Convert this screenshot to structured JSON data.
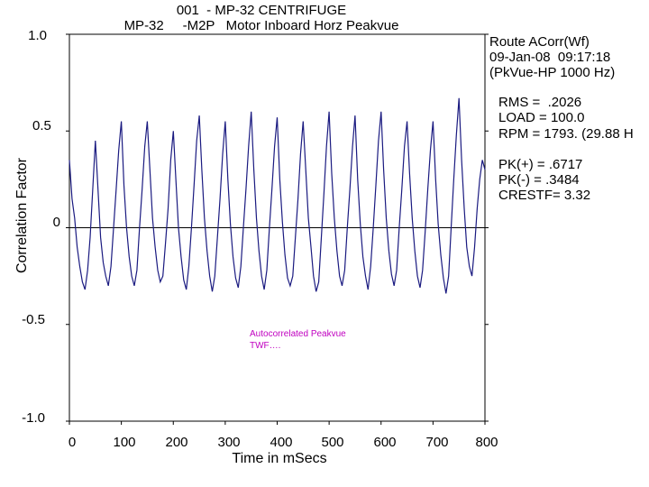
{
  "chart_data": {
    "type": "line",
    "title": "001  - MP-32 CENTRIFUGE",
    "subtitle": "MP-32     -M2P   Motor Inboard Horz Peakvue",
    "xlabel": "Time in mSecs",
    "ylabel": "Correlation Factor",
    "xlim": [
      0,
      800
    ],
    "ylim": [
      -1.0,
      1.0
    ],
    "x_ticks": [
      "0",
      "100",
      "200",
      "300",
      "400",
      "500",
      "600",
      "700",
      "800"
    ],
    "y_ticks": [
      "1.0",
      "0.5",
      "0",
      "-0.5",
      "-1.0"
    ],
    "grid": false,
    "zero_line": true,
    "series_color": "#1a1a80",
    "period_ms": 66.9,
    "series": [
      {
        "x": [
          0,
          5,
          10,
          15,
          20,
          25,
          30,
          35,
          40,
          45,
          50,
          55,
          60,
          65,
          70,
          75,
          80,
          85,
          90,
          95,
          100,
          105,
          110,
          115,
          120,
          125,
          130,
          135,
          140,
          145,
          150,
          155,
          160,
          165,
          170,
          175,
          180,
          185,
          190,
          195,
          200,
          205,
          210,
          215,
          220,
          225,
          230,
          235,
          240,
          245,
          250,
          255,
          260,
          265,
          270,
          275,
          280,
          285,
          290,
          295,
          300,
          305,
          310,
          315,
          320,
          325,
          330,
          335,
          340,
          345,
          350,
          355,
          360,
          365,
          370,
          375,
          380,
          385,
          390,
          395,
          400,
          405,
          410,
          415,
          420,
          425,
          430,
          435,
          440,
          445,
          450,
          455,
          460,
          465,
          470,
          475,
          480,
          485,
          490,
          495,
          500,
          505,
          510,
          515,
          520,
          525,
          530,
          535,
          540,
          545,
          550,
          555,
          560,
          565,
          570,
          575,
          580,
          585,
          590,
          595,
          600,
          605,
          610,
          615,
          620,
          625,
          630,
          635,
          640,
          645,
          650,
          655,
          660,
          665,
          670,
          675,
          680,
          685,
          690,
          695,
          700,
          705,
          710,
          715,
          720,
          725,
          730,
          735,
          740,
          745,
          750,
          755,
          760,
          765,
          770,
          775,
          780,
          785,
          790,
          795,
          800
        ],
        "y": [
          0.35,
          0.15,
          0.05,
          -0.1,
          -0.2,
          -0.28,
          -0.32,
          -0.22,
          -0.05,
          0.2,
          0.45,
          0.2,
          -0.05,
          -0.18,
          -0.25,
          -0.3,
          -0.2,
          0.0,
          0.2,
          0.4,
          0.55,
          0.22,
          0.0,
          -0.15,
          -0.25,
          -0.3,
          -0.22,
          0.0,
          0.2,
          0.42,
          0.55,
          0.3,
          0.05,
          -0.1,
          -0.22,
          -0.28,
          -0.25,
          -0.08,
          0.1,
          0.35,
          0.5,
          0.25,
          0.0,
          -0.15,
          -0.27,
          -0.32,
          -0.2,
          0.0,
          0.22,
          0.45,
          0.58,
          0.3,
          0.05,
          -0.12,
          -0.25,
          -0.33,
          -0.25,
          -0.05,
          0.15,
          0.38,
          0.55,
          0.25,
          0.02,
          -0.15,
          -0.26,
          -0.31,
          -0.2,
          0.0,
          0.2,
          0.42,
          0.6,
          0.3,
          0.05,
          -0.12,
          -0.25,
          -0.32,
          -0.22,
          0.0,
          0.2,
          0.42,
          0.57,
          0.25,
          0.03,
          -0.14,
          -0.26,
          -0.3,
          -0.25,
          -0.05,
          0.15,
          0.38,
          0.55,
          0.3,
          0.05,
          -0.1,
          -0.25,
          -0.33,
          -0.28,
          -0.05,
          0.18,
          0.42,
          0.6,
          0.28,
          0.05,
          -0.12,
          -0.25,
          -0.3,
          -0.22,
          0.0,
          0.2,
          0.42,
          0.58,
          0.25,
          0.02,
          -0.15,
          -0.25,
          -0.32,
          -0.2,
          0.0,
          0.22,
          0.45,
          0.6,
          0.3,
          0.05,
          -0.12,
          -0.24,
          -0.3,
          -0.22,
          0.0,
          0.2,
          0.42,
          0.55,
          0.28,
          0.05,
          -0.12,
          -0.25,
          -0.31,
          -0.22,
          -0.02,
          0.2,
          0.4,
          0.55,
          0.25,
          0.02,
          -0.14,
          -0.26,
          -0.34,
          -0.25,
          0.0,
          0.25,
          0.48,
          0.67,
          0.35,
          0.1,
          -0.1,
          -0.2,
          -0.25,
          -0.1,
          0.1,
          0.25,
          0.35,
          0.3
        ]
      }
    ]
  },
  "info": {
    "route": "Route ACorr(Wf)",
    "datetime": "09-Jan-08  09:17:18",
    "mode": "(PkVue-HP 1000 Hz)",
    "rms": "RMS =  .2026",
    "load": "LOAD = 100.0",
    "rpm": "RPM = 1793. (29.88 H",
    "pk_plus": "PK(+) = .6717",
    "pk_minus": "PK(-) = .3484",
    "crest": "CRESTF= 3.32"
  },
  "annotation": "Autocorrelated Peakvue\nTWF…."
}
